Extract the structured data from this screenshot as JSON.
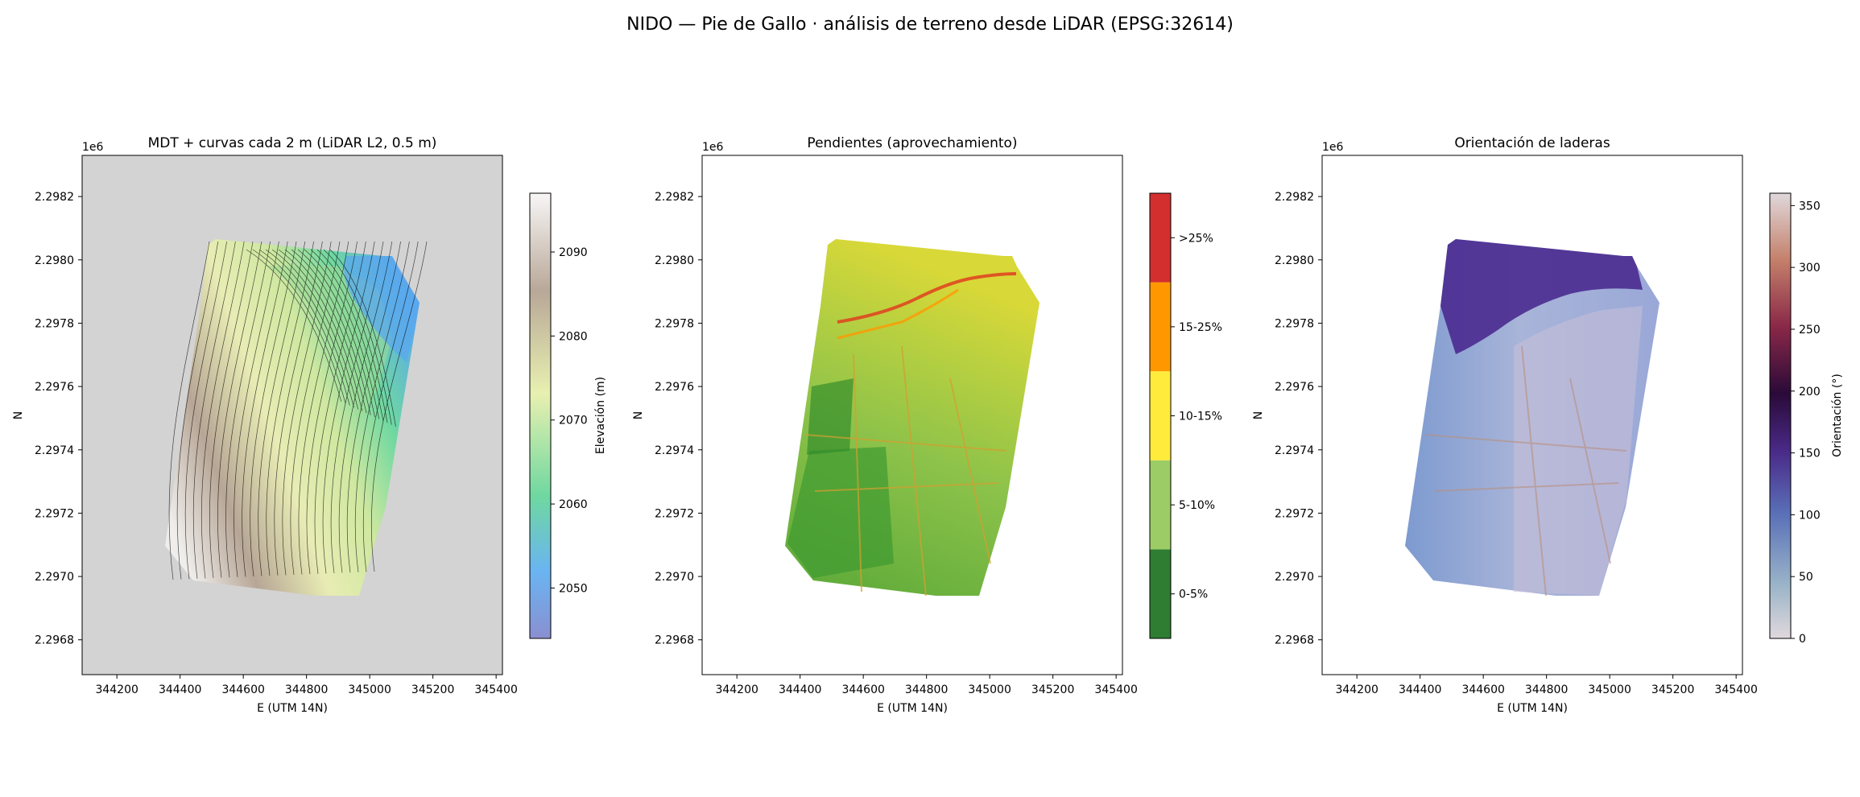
{
  "suptitle": "NIDO — Pie de Gallo · análisis de terreno desde LiDAR (EPSG:32614)",
  "colors": {
    "axes_background": "#d3d3d3",
    "contour_line": "#000000",
    "terrain_colormap": [
      "#8a8fd0",
      "#6ab4f2",
      "#6fd8a0",
      "#e8f0b0",
      "#b8a898",
      "#f8f6f6"
    ],
    "twilight_shifted_colormap": [
      "#e0d8dc",
      "#7da0b8",
      "#5a60b8",
      "#4a2080",
      "#2a0a38",
      "#8a2848",
      "#c4806a",
      "#e0d8dc"
    ]
  },
  "chart_data": [
    {
      "type": "heatmap",
      "title": "MDT + curvas cada 2 m (LiDAR L2, 0.5 m)",
      "xlabel": "E (UTM 14N)",
      "ylabel": "N",
      "xlim": [
        344090,
        345420
      ],
      "ylim": [
        2296690,
        2298330
      ],
      "y_offset_text": "1e6",
      "x_ticks": [
        "344200",
        "344400",
        "344600",
        "344800",
        "345000",
        "345200",
        "345400"
      ],
      "y_ticks": [
        "2.2968",
        "2.2970",
        "2.2972",
        "2.2974",
        "2.2976",
        "2.2978",
        "2.2980",
        "2.2982"
      ],
      "colormap": "terrain",
      "contour_interval_m": 2,
      "colorbar": {
        "label": "Elevación (m)",
        "range": [
          2044,
          2097
        ],
        "ticks": [
          "2050",
          "2060",
          "2070",
          "2080",
          "2090"
        ]
      },
      "extent_outline_EN": [
        [
          344460,
          2298070
        ],
        [
          344840,
          2298060
        ],
        [
          345070,
          2298020
        ],
        [
          345150,
          2297870
        ],
        [
          345070,
          2297600
        ],
        [
          344980,
          2297300
        ],
        [
          344960,
          2297050
        ],
        [
          344880,
          2296960
        ],
        [
          344590,
          2296960
        ],
        [
          344320,
          2297120
        ],
        [
          344390,
          2297750
        ]
      ]
    },
    {
      "type": "heatmap",
      "title": "Pendientes (aprovechamiento)",
      "xlabel": "E (UTM 14N)",
      "ylabel": "N",
      "xlim": [
        344090,
        345420
      ],
      "ylim": [
        2296690,
        2298330
      ],
      "y_offset_text": "1e6",
      "x_ticks": [
        "344200",
        "344400",
        "344600",
        "344800",
        "345000",
        "345200",
        "345400"
      ],
      "y_ticks": [
        "2.2968",
        "2.2970",
        "2.2972",
        "2.2974",
        "2.2976",
        "2.2978",
        "2.2980",
        "2.2982"
      ],
      "classes": [
        {
          "label": "0-5%",
          "color": "#2e7d32"
        },
        {
          "label": "5-10%",
          "color": "#9ccc65"
        },
        {
          "label": "10-15%",
          "color": "#ffeb3b"
        },
        {
          "label": "15-25%",
          "color": "#ff9800"
        },
        {
          "label": ">25%",
          "color": "#d32f2f"
        }
      ],
      "extent_outline_EN": [
        [
          344460,
          2298070
        ],
        [
          344840,
          2298060
        ],
        [
          345070,
          2298020
        ],
        [
          345150,
          2297870
        ],
        [
          345070,
          2297600
        ],
        [
          344980,
          2297300
        ],
        [
          344960,
          2297050
        ],
        [
          344880,
          2296960
        ],
        [
          344590,
          2296960
        ],
        [
          344320,
          2297120
        ],
        [
          344390,
          2297750
        ]
      ]
    },
    {
      "type": "heatmap",
      "title": "Orientación de laderas",
      "xlabel": "E (UTM 14N)",
      "ylabel": "N",
      "xlim": [
        344090,
        345420
      ],
      "ylim": [
        2296690,
        2298330
      ],
      "y_offset_text": "1e6",
      "x_ticks": [
        "344200",
        "344400",
        "344600",
        "344800",
        "345000",
        "345200",
        "345400"
      ],
      "y_ticks": [
        "2.2968",
        "2.2970",
        "2.2972",
        "2.2974",
        "2.2976",
        "2.2978",
        "2.2980",
        "2.2982"
      ],
      "colormap": "twilight_shifted",
      "colorbar": {
        "label": "Orientación (°)",
        "range": [
          0,
          360
        ],
        "ticks": [
          "0",
          "50",
          "100",
          "150",
          "200",
          "250",
          "300",
          "350"
        ]
      },
      "extent_outline_EN": [
        [
          344460,
          2298070
        ],
        [
          344840,
          2298060
        ],
        [
          345070,
          2298020
        ],
        [
          345150,
          2297870
        ],
        [
          345070,
          2297600
        ],
        [
          344980,
          2297300
        ],
        [
          344960,
          2297050
        ],
        [
          344880,
          2296960
        ],
        [
          344590,
          2296960
        ],
        [
          344320,
          2297120
        ],
        [
          344390,
          2297750
        ]
      ]
    }
  ]
}
